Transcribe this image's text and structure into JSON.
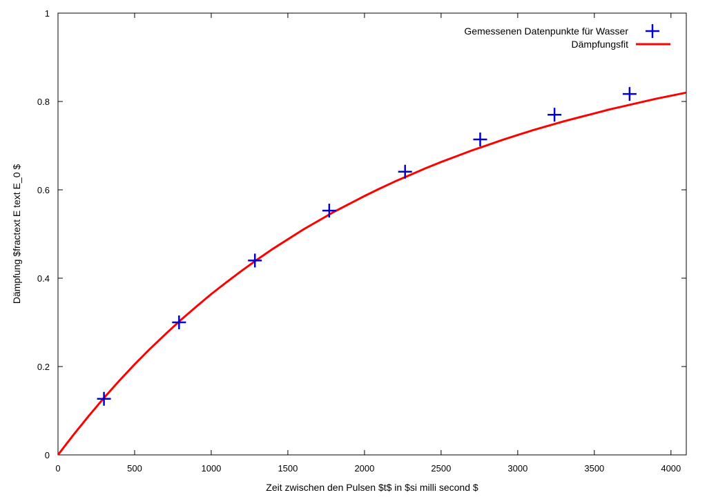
{
  "chart_data": {
    "type": "scatter",
    "xlabel": "Zeit zwischen den Pulsen $t$ in $si milli second $",
    "ylabel": "Dämpfung $fractext E text E_0 $",
    "xlim": [
      0,
      4100
    ],
    "ylim": [
      0,
      1
    ],
    "x_ticks": [
      0,
      500,
      1000,
      1500,
      2000,
      2500,
      3000,
      3500,
      4000
    ],
    "y_ticks": [
      0,
      0.2,
      0.4,
      0.6,
      0.8,
      1
    ],
    "x_tick_labels": [
      "0",
      "500",
      "1000",
      "1500",
      "2000",
      "2500",
      "3000",
      "3500",
      "4000"
    ],
    "y_tick_labels": [
      "0",
      "0.2",
      "0.4",
      "0.6",
      "0.8",
      "1"
    ],
    "grid": false,
    "legend_position": "top-right",
    "series": [
      {
        "name": "Gemessenen Datenpunkte für Wasser",
        "kind": "points",
        "marker": "plus",
        "color": "#0000cc",
        "x": [
          300,
          790,
          1285,
          1770,
          2265,
          2755,
          3240,
          3730
        ],
        "y": [
          0.127,
          0.3,
          0.44,
          0.553,
          0.641,
          0.714,
          0.77,
          0.817
        ]
      },
      {
        "name": "Dämpfungsfit",
        "kind": "line",
        "color": "#ff0000",
        "x": [
          0,
          100,
          200,
          300,
          400,
          500,
          600,
          700,
          800,
          900,
          1000,
          1100,
          1200,
          1300,
          1400,
          1500,
          1600,
          1700,
          1800,
          1900,
          2000,
          2100,
          2200,
          2300,
          2400,
          2500,
          2600,
          2700,
          2800,
          2900,
          3000,
          3100,
          3200,
          3300,
          3400,
          3500,
          3600,
          3700,
          3800,
          3900,
          4000,
          4100
        ],
        "y": [
          0,
          0.045,
          0.088,
          0.129,
          0.168,
          0.205,
          0.24,
          0.273,
          0.305,
          0.335,
          0.364,
          0.391,
          0.417,
          0.442,
          0.466,
          0.488,
          0.51,
          0.53,
          0.55,
          0.568,
          0.586,
          0.603,
          0.619,
          0.634,
          0.649,
          0.663,
          0.676,
          0.689,
          0.701,
          0.713,
          0.724,
          0.735,
          0.745,
          0.755,
          0.764,
          0.773,
          0.782,
          0.79,
          0.798,
          0.806,
          0.813,
          0.82
        ]
      }
    ]
  }
}
